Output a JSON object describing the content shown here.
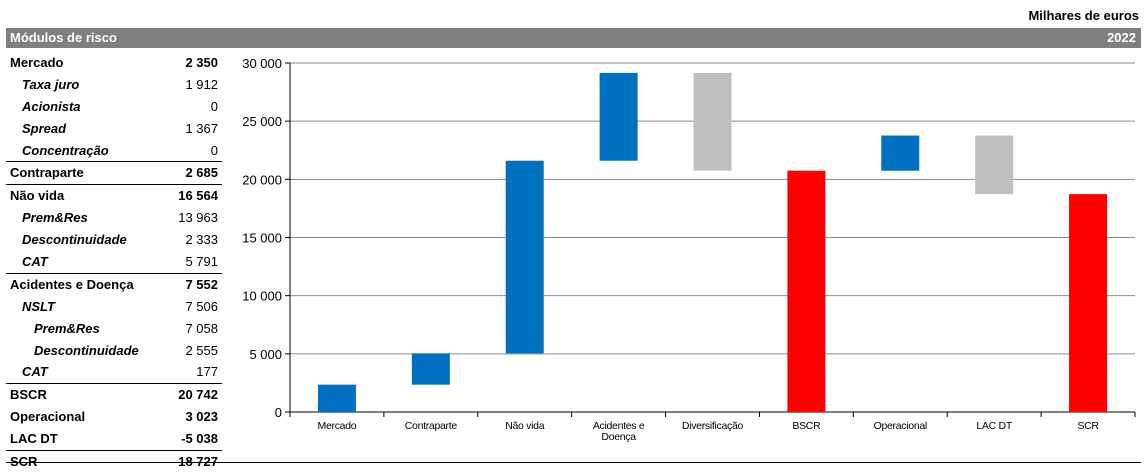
{
  "unit_label": "Milhares de euros",
  "header": {
    "title": "Módulos de risco",
    "year": "2022"
  },
  "table": [
    {
      "label": "Mercado",
      "value": "2 350",
      "style": "b",
      "level": 1,
      "sep": false
    },
    {
      "label": "Taxa juro",
      "value": "1 912",
      "style": "i",
      "level": 2,
      "sep": false
    },
    {
      "label": "Acionista",
      "value": "0",
      "style": "i",
      "level": 2,
      "sep": false
    },
    {
      "label": "Spread",
      "value": "1 367",
      "style": "i",
      "level": 2,
      "sep": false
    },
    {
      "label": "Concentração",
      "value": "0",
      "style": "i",
      "level": 2,
      "sep": false
    },
    {
      "label": "Contraparte",
      "value": "2 685",
      "style": "b",
      "level": 1,
      "sep": true
    },
    {
      "label": "Não vida",
      "value": "16 564",
      "style": "b",
      "level": 1,
      "sep": true
    },
    {
      "label": "Prem&Res",
      "value": "13 963",
      "style": "i",
      "level": 2,
      "sep": false
    },
    {
      "label": "Descontinuidade",
      "value": "2 333",
      "style": "i",
      "level": 2,
      "sep": false
    },
    {
      "label": "CAT",
      "value": "5 791",
      "style": "i",
      "level": 2,
      "sep": false
    },
    {
      "label": "Acidentes e Doença",
      "value": "7 552",
      "style": "b",
      "level": 1,
      "sep": true
    },
    {
      "label": "NSLT",
      "value": "7 506",
      "style": "i",
      "level": 2,
      "sep": false
    },
    {
      "label": "Prem&Res",
      "value": "7 058",
      "style": "i",
      "level": 3,
      "sep": false
    },
    {
      "label": "Descontinuidade",
      "value": "2 555",
      "style": "i",
      "level": 3,
      "sep": false
    },
    {
      "label": "CAT",
      "value": "177",
      "style": "i",
      "level": 2,
      "sep": false
    },
    {
      "label": "BSCR",
      "value": "20 742",
      "style": "b",
      "level": 1,
      "sep": true
    },
    {
      "label": "Operacional",
      "value": "3 023",
      "style": "b",
      "level": 1,
      "sep": false
    },
    {
      "label": "LAC DT",
      "value": "-5 038",
      "style": "b",
      "level": 1,
      "sep": false
    },
    {
      "label": "SCR",
      "value": "18 727",
      "style": "b",
      "level": 1,
      "sep": true
    }
  ],
  "chart_data": {
    "type": "bar",
    "subtype": "waterfall",
    "categories": [
      "Mercado",
      "Contraparte",
      "Não vida",
      "Acidentes e Doença",
      "Diversificação",
      "BSCR",
      "Operacional",
      "LAC DT",
      "SCR"
    ],
    "category_lines": [
      [
        "Mercado"
      ],
      [
        "Contraparte"
      ],
      [
        "Não vida"
      ],
      [
        "Acidentes e",
        "Doença"
      ],
      [
        "Diversificação"
      ],
      [
        "BSCR"
      ],
      [
        "Operacional"
      ],
      [
        "LAC DT"
      ],
      [
        "SCR"
      ]
    ],
    "bars": [
      {
        "bottom": 0,
        "top": 2350,
        "color": "#0070c0"
      },
      {
        "bottom": 2350,
        "top": 5035,
        "color": "#0070c0"
      },
      {
        "bottom": 5035,
        "top": 21599,
        "color": "#0070c0"
      },
      {
        "bottom": 21599,
        "top": 29151,
        "color": "#0070c0"
      },
      {
        "bottom": 20742,
        "top": 29151,
        "color": "#bfbfbf"
      },
      {
        "bottom": 0,
        "top": 20742,
        "color": "#ff0000"
      },
      {
        "bottom": 20742,
        "top": 23765,
        "color": "#0070c0"
      },
      {
        "bottom": 18727,
        "top": 23765,
        "color": "#bfbfbf"
      },
      {
        "bottom": 0,
        "top": 18727,
        "color": "#ff0000"
      }
    ],
    "ylim": [
      0,
      30000
    ],
    "yticks": [
      0,
      5000,
      10000,
      15000,
      20000,
      25000,
      30000
    ],
    "ytick_labels": [
      "0",
      "5 000",
      "10 000",
      "15 000",
      "20 000",
      "25 000",
      "30 000"
    ],
    "grid": true,
    "legend": "none"
  }
}
